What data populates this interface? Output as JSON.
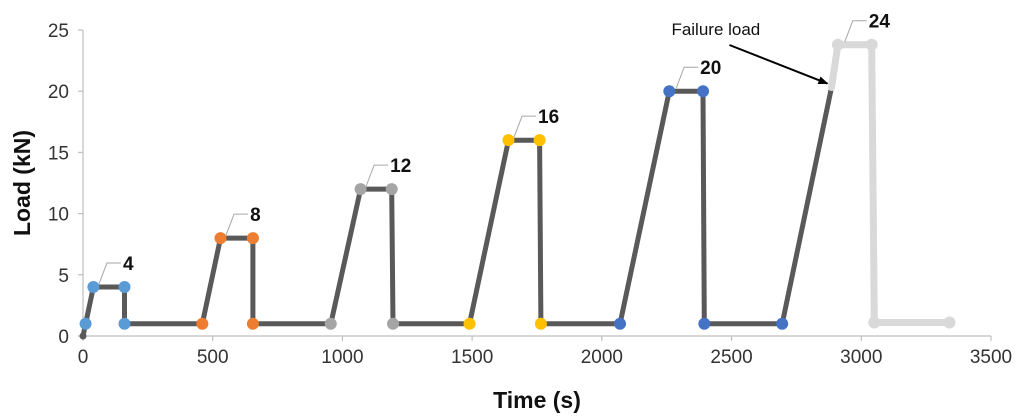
{
  "chart_data": {
    "type": "line",
    "title": "",
    "xlabel": "Time (s)",
    "ylabel": "Load (kN)",
    "xlim": [
      0,
      3500
    ],
    "ylim": [
      0,
      25
    ],
    "xticks": [
      0,
      500,
      1000,
      1500,
      2000,
      2500,
      3000,
      3500
    ],
    "yticks": [
      0,
      5,
      10,
      15,
      20,
      25
    ],
    "grid": false,
    "legend": "none",
    "line_color": "#595959",
    "final_segment_color": "#d9d9d9",
    "series": [
      {
        "points": [
          {
            "x": 0,
            "y": 0,
            "color": "#595959"
          },
          {
            "x": 10,
            "y": 1,
            "color": "#5b9bd5"
          },
          {
            "x": 40,
            "y": 4,
            "color": "#5b9bd5"
          },
          {
            "x": 160,
            "y": 4,
            "color": "#5b9bd5"
          },
          {
            "x": 160,
            "y": 1,
            "color": "#5b9bd5"
          },
          {
            "x": 460,
            "y": 1,
            "color": "#ed7d31"
          },
          {
            "x": 530,
            "y": 8,
            "color": "#ed7d31"
          },
          {
            "x": 655,
            "y": 8,
            "color": "#ed7d31"
          },
          {
            "x": 655,
            "y": 1,
            "color": "#ed7d31"
          },
          {
            "x": 955,
            "y": 1,
            "color": "#a5a5a5"
          },
          {
            "x": 1070,
            "y": 12,
            "color": "#a5a5a5"
          },
          {
            "x": 1190,
            "y": 12,
            "color": "#a5a5a5"
          },
          {
            "x": 1195,
            "y": 1,
            "color": "#a5a5a5"
          },
          {
            "x": 1490,
            "y": 1,
            "color": "#ffc000"
          },
          {
            "x": 1640,
            "y": 16,
            "color": "#ffc000"
          },
          {
            "x": 1760,
            "y": 16,
            "color": "#ffc000"
          },
          {
            "x": 1765,
            "y": 1,
            "color": "#ffc000"
          },
          {
            "x": 2070,
            "y": 1,
            "color": "#4472c4"
          },
          {
            "x": 2260,
            "y": 20,
            "color": "#4472c4"
          },
          {
            "x": 2390,
            "y": 20,
            "color": "#4472c4"
          },
          {
            "x": 2395,
            "y": 1,
            "color": "#4472c4"
          },
          {
            "x": 2695,
            "y": 1,
            "color": "#4472c4"
          },
          {
            "x": 2885,
            "y": 20.3,
            "color": null
          }
        ]
      },
      {
        "points": [
          {
            "x": 2885,
            "y": 20.3,
            "color": null
          },
          {
            "x": 2910,
            "y": 23.8,
            "color": "#d9d9d9"
          },
          {
            "x": 3040,
            "y": 23.8,
            "color": "#d9d9d9"
          },
          {
            "x": 3050,
            "y": 1.1,
            "color": "#d9d9d9"
          },
          {
            "x": 3340,
            "y": 1.1,
            "color": "#d9d9d9"
          }
        ]
      }
    ],
    "data_labels": [
      {
        "text": "4",
        "x": 100,
        "y": 4
      },
      {
        "text": "8",
        "x": 590,
        "y": 8
      },
      {
        "text": "12",
        "x": 1130,
        "y": 12
      },
      {
        "text": "16",
        "x": 1700,
        "y": 16
      },
      {
        "text": "20",
        "x": 2325,
        "y": 20
      },
      {
        "text": "24",
        "x": 2975,
        "y": 23.8
      }
    ],
    "annotations": [
      {
        "text": "Failure load",
        "target_x": 2885,
        "target_y": 20.3
      }
    ]
  }
}
